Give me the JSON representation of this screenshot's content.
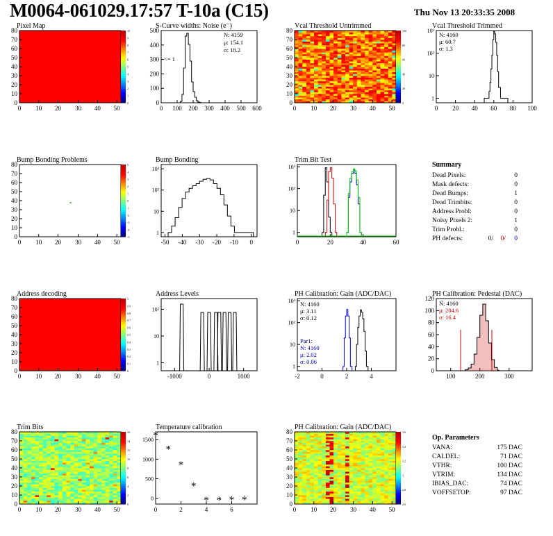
{
  "header": {
    "title": "M0064-061029.17:57 T-10a (C15)",
    "date": "Thu Nov 13 20:33:35 2008"
  },
  "colors": {
    "map_red": "#ff0000",
    "hist_line": "#000000",
    "red": "#cc0000",
    "green": "#00cc00",
    "blue": "#0000cc"
  },
  "panels": {
    "pixel_map": {
      "title": "Pixel Map",
      "yticks": [
        "0",
        "10",
        "20",
        "30",
        "40",
        "50",
        "60",
        "70",
        "80"
      ],
      "xticks": [
        "0",
        "10",
        "20",
        "30",
        "40",
        "50"
      ],
      "zticks": [
        "0",
        "1",
        "2",
        "3",
        "4",
        "5",
        "6",
        "7",
        "8",
        "9",
        "10"
      ]
    },
    "scurve": {
      "title": "S-Curve widths: Noise (e⁻)",
      "stats": [
        "N: 4159",
        "μ: 154.1",
        "σ: 18.2"
      ],
      "note": "<= 1",
      "yticks": [
        "0",
        "100",
        "200",
        "300",
        "400",
        "500"
      ],
      "xticks": [
        "0",
        "100",
        "200",
        "300",
        "400",
        "500",
        "600"
      ]
    },
    "vcal_untrimmed": {
      "title": "Vcal Threshold Untrimmed",
      "yticks": [
        "0",
        "10",
        "20",
        "30",
        "40",
        "50",
        "60",
        "70",
        "80"
      ],
      "xticks": [
        "0",
        "10",
        "20",
        "30",
        "40",
        "50"
      ],
      "zticks": [
        "0",
        "20",
        "40",
        "60",
        "80",
        "100"
      ]
    },
    "vcal_trimmed": {
      "title": "Vcal Threshold Trimmed",
      "stats": [
        "N: 4160",
        "μ: 60.7",
        "σ:  1.3"
      ],
      "yticks": [
        "1",
        "10",
        "10²",
        "10³"
      ],
      "xticks": [
        "0",
        "20",
        "40",
        "60",
        "80",
        "100"
      ]
    },
    "bump_problems": {
      "title": "Bump Bonding Problems",
      "yticks": [
        "0",
        "10",
        "20",
        "30",
        "40",
        "50",
        "60",
        "70",
        "80"
      ],
      "xticks": [
        "0",
        "10",
        "20",
        "30",
        "40",
        "50"
      ],
      "zticks": [
        "-5",
        "-4",
        "-3",
        "-2",
        "-1",
        "0",
        "1",
        "2",
        "3",
        "4",
        "5"
      ]
    },
    "bump_bonding": {
      "title": "Bump Bonding",
      "yticks": [
        "1",
        "10",
        "10²",
        "10³"
      ],
      "xticks": [
        "-50",
        "-40",
        "-30",
        "-20",
        "-10",
        "0"
      ]
    },
    "trim_bit": {
      "title": "Trim Bit Test",
      "yticks": [
        "1",
        "10",
        "10²",
        "10³"
      ],
      "xticks": [
        "0",
        "20",
        "40",
        "60"
      ]
    },
    "summary": {
      "title": "Summary",
      "rows": [
        {
          "label": "Dead Pixels:",
          "value": "0"
        },
        {
          "label": "Mask defects:",
          "value": "0"
        },
        {
          "label": "Dead Bumps:",
          "value": "1"
        },
        {
          "label": "Dead Trimbits:",
          "value": "0"
        },
        {
          "label": "Address Probl:",
          "value": "0"
        },
        {
          "label": "Noisy Pixels 2:",
          "value": "1"
        },
        {
          "label": "Trim Probl.:",
          "value": "0"
        }
      ],
      "ph_label": "PH defects:",
      "ph_values": [
        "0/",
        "0/",
        "0"
      ]
    },
    "address_decoding": {
      "title": "Address decoding",
      "yticks": [
        "0",
        "10",
        "20",
        "30",
        "40",
        "50",
        "60",
        "70",
        "80"
      ],
      "xticks": [
        "0",
        "10",
        "20",
        "30",
        "40",
        "50"
      ],
      "zticks": [
        "0",
        "0.1",
        "0.2",
        "0.3",
        "0.4",
        "0.5",
        "0.6",
        "0.7",
        "0.8",
        "0.9",
        "1"
      ]
    },
    "address_levels": {
      "title": "Address Levels",
      "yticks": [
        "1",
        "10",
        "10²"
      ],
      "xticks": [
        "-1000",
        "0",
        "1000"
      ]
    },
    "ph_gain": {
      "title": "PH Calibration: Gain (ADC/DAC)",
      "stats": [
        "N: 4160",
        "μ: 3.11",
        "σ: 0.12"
      ],
      "par1": [
        "Par1:",
        "N: 4160",
        "μ: 2.02",
        "σ: 0.06"
      ],
      "yticks": [
        "1",
        "10",
        "10²",
        "10³"
      ],
      "xticks": [
        "-2",
        "0",
        "2",
        "4"
      ]
    },
    "ph_pedestal": {
      "title": "PH Calibration: Pedestal (DAC)",
      "stats": [
        "N: 4160",
        "μ: 204.6",
        "σ: 16.4"
      ],
      "yticks": [
        "0",
        "20",
        "40",
        "60",
        "80",
        "100",
        "120"
      ],
      "xticks": [
        "100",
        "200",
        "300"
      ]
    },
    "trim_bits": {
      "title": "Trim Bits",
      "yticks": [
        "0",
        "10",
        "20",
        "30",
        "40",
        "50",
        "60",
        "70",
        "80"
      ],
      "xticks": [
        "0",
        "10",
        "20",
        "30",
        "40",
        "50"
      ],
      "zticks": [
        "0",
        "2",
        "4",
        "6",
        "8",
        "10",
        "12",
        "14",
        "16"
      ]
    },
    "temperature": {
      "title": "Temperature calibration",
      "yticks": [
        "0",
        "500",
        "1000",
        "1500"
      ],
      "xticks": [
        "0",
        "2",
        "4",
        "6"
      ]
    },
    "ph_gain_map": {
      "title": "PH Calibration: Gain (ADC/DAC)",
      "yticks": [
        "0",
        "10",
        "20",
        "30",
        "40",
        "50",
        "60",
        "70",
        "80"
      ],
      "xticks": [
        "0",
        "10",
        "20",
        "30",
        "40",
        "50"
      ],
      "zticks": [
        "2.6",
        "2.8",
        "3",
        "3.2",
        "3.4",
        "3.6"
      ]
    },
    "op_params": {
      "title": "Op. Parameters",
      "rows": [
        {
          "label": "VANA:",
          "value": "175 DAC"
        },
        {
          "label": "CALDEL:",
          "value": "71 DAC"
        },
        {
          "label": "VTHR:",
          "value": "100 DAC"
        },
        {
          "label": "VTRIM:",
          "value": "134 DAC"
        },
        {
          "label": "IBIAS_DAC:",
          "value": "74 DAC"
        },
        {
          "label": "VOFFSETOP:",
          "value": "97 DAC"
        }
      ]
    }
  },
  "chart_data": [
    {
      "type": "heatmap",
      "title": "Pixel Map",
      "xlim": [
        0,
        52
      ],
      "ylim": [
        0,
        80
      ],
      "zlim": [
        0,
        10
      ],
      "uniform_value": 10
    },
    {
      "type": "bar",
      "title": "S-Curve widths: Noise (e⁻)",
      "x": [
        120,
        130,
        140,
        150,
        160,
        170,
        180,
        190,
        200,
        210,
        220,
        230,
        240
      ],
      "values": [
        10,
        60,
        250,
        480,
        500,
        420,
        300,
        150,
        80,
        40,
        15,
        5,
        2
      ],
      "xlim": [
        0,
        600
      ],
      "ylim": [
        0,
        520
      ]
    },
    {
      "type": "heatmap",
      "title": "Vcal Threshold Untrimmed",
      "xlim": [
        0,
        52
      ],
      "ylim": [
        0,
        80
      ],
      "zlim": [
        0,
        110
      ]
    },
    {
      "type": "bar",
      "title": "Vcal Threshold Trimmed",
      "x": [
        50,
        53,
        55,
        56,
        57,
        58,
        59,
        60,
        61,
        62,
        63,
        64,
        65,
        67,
        70,
        72,
        73
      ],
      "values": [
        1,
        1,
        2,
        5,
        20,
        80,
        400,
        900,
        700,
        300,
        80,
        15,
        3,
        1,
        1,
        1,
        1
      ],
      "xlim": [
        0,
        100
      ],
      "log_y": true
    },
    {
      "type": "heatmap",
      "title": "Bump Bonding Problems",
      "xlim": [
        0,
        52
      ],
      "ylim": [
        0,
        80
      ],
      "zlim": [
        -5,
        5
      ]
    },
    {
      "type": "bar",
      "title": "Bump Bonding",
      "x": [
        -48,
        -46,
        -44,
        -42,
        -40,
        -38,
        -36,
        -34,
        -32,
        -30,
        -28,
        -26,
        -24,
        -22,
        -20,
        -18,
        -16,
        -14,
        -12,
        -10,
        -2,
        0
      ],
      "values": [
        1,
        2,
        5,
        15,
        40,
        80,
        120,
        160,
        200,
        260,
        320,
        350,
        300,
        200,
        120,
        60,
        20,
        6,
        2,
        1,
        1,
        1
      ],
      "xlim": [
        -52,
        3
      ],
      "log_y": true
    },
    {
      "type": "line",
      "title": "Trim Bit Test",
      "series": [
        {
          "values": [
            [
              15,
              1
            ],
            [
              16,
              50
            ],
            [
              17,
              900
            ],
            [
              18,
              200
            ],
            [
              19,
              5
            ],
            [
              20,
              1
            ]
          ]
        },
        {
          "values": [
            [
              17,
              1
            ],
            [
              18,
              30
            ],
            [
              19,
              600
            ],
            [
              20,
              900
            ],
            [
              21,
              300
            ],
            [
              22,
              20
            ],
            [
              23,
              1
            ]
          ]
        },
        {
          "values": [
            [
              30,
              1
            ],
            [
              31,
              40
            ],
            [
              32,
              200
            ],
            [
              33,
              500
            ],
            [
              34,
              700
            ],
            [
              35,
              500
            ],
            [
              36,
              150
            ],
            [
              37,
              20
            ],
            [
              38,
              1
            ]
          ]
        },
        {
          "values": [
            [
              30,
              1
            ],
            [
              31,
              60
            ],
            [
              32,
              300
            ],
            [
              33,
              600
            ],
            [
              34,
              800
            ],
            [
              35,
              650
            ],
            [
              36,
              250
            ],
            [
              37,
              40
            ],
            [
              38,
              1
            ]
          ]
        }
      ],
      "xlim": [
        0,
        60
      ],
      "log_y": true
    },
    {
      "type": "heatmap",
      "title": "Address decoding",
      "xlim": [
        0,
        52
      ],
      "ylim": [
        0,
        80
      ],
      "zlim": [
        0,
        1
      ],
      "uniform_value": 1
    },
    {
      "type": "bar",
      "title": "Address Levels",
      "x": [
        -800,
        -200,
        0,
        200,
        300,
        450,
        600,
        750
      ],
      "values": [
        400,
        300,
        300,
        300,
        300,
        300,
        300,
        300
      ],
      "xlim": [
        -1400,
        1400
      ],
      "log_y": true
    },
    {
      "type": "bar",
      "title": "PH Calibration: Gain (ADC/DAC)",
      "series": [
        {
          "x": [
            1.7,
            1.8,
            1.9,
            2.0,
            2.1,
            2.2,
            2.3
          ],
          "values": [
            1,
            20,
            200,
            400,
            200,
            20,
            1
          ]
        },
        {
          "x": [
            2.7,
            2.8,
            2.9,
            3.0,
            3.1,
            3.2,
            3.3,
            3.4,
            3.5,
            3.6
          ],
          "values": [
            1,
            10,
            60,
            200,
            380,
            300,
            150,
            40,
            5,
            1
          ]
        }
      ],
      "xlim": [
        -2,
        6
      ],
      "log_y": true
    },
    {
      "type": "bar",
      "title": "PH Calibration: Pedestal (DAC)",
      "x": [
        150,
        160,
        170,
        180,
        190,
        200,
        210,
        220,
        230,
        240,
        250,
        260
      ],
      "values": [
        2,
        5,
        12,
        30,
        60,
        100,
        120,
        90,
        50,
        20,
        6,
        1
      ],
      "xlim": [
        50,
        380
      ],
      "ylim": [
        0,
        130
      ]
    },
    {
      "type": "heatmap",
      "title": "Trim Bits",
      "xlim": [
        0,
        52
      ],
      "ylim": [
        0,
        80
      ],
      "zlim": [
        0,
        16
      ]
    },
    {
      "type": "scatter",
      "title": "Temperature calibration",
      "x": [
        0,
        1,
        2,
        3,
        4,
        5,
        6,
        7
      ],
      "values": [
        1600,
        1250,
        850,
        300,
        -60,
        -60,
        -50,
        -50
      ],
      "xlim": [
        0,
        8
      ],
      "ylim": [
        -150,
        1700
      ]
    },
    {
      "type": "heatmap",
      "title": "PH Calibration: Gain (ADC/DAC)",
      "xlim": [
        0,
        52
      ],
      "ylim": [
        0,
        80
      ],
      "zlim": [
        2.6,
        3.6
      ]
    }
  ]
}
